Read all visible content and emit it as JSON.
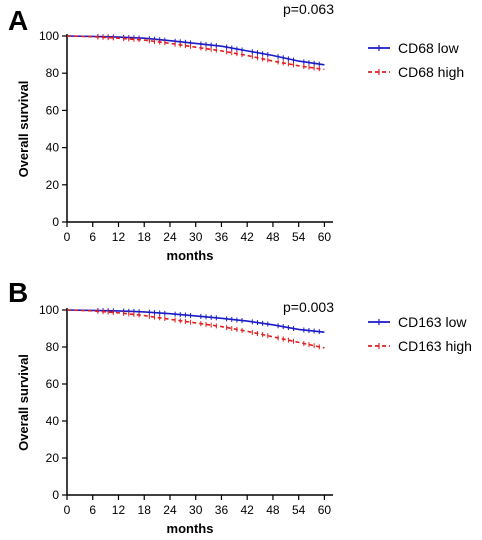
{
  "chart_data": [
    {
      "type": "line",
      "panel_label": "A",
      "xlabel": "months",
      "ylabel": "Overall survival",
      "xlim": [
        0,
        62
      ],
      "ylim": [
        0,
        100
      ],
      "xticks": [
        0,
        6,
        12,
        18,
        24,
        30,
        36,
        42,
        48,
        54,
        60
      ],
      "yticks": [
        0,
        20,
        40,
        60,
        80,
        100
      ],
      "annotation": "p=0.063",
      "legend_position": "right",
      "series": [
        {
          "name": "CD68 low",
          "color": "#1a1ac8",
          "style": "solid",
          "x": [
            0,
            6,
            12,
            18,
            24,
            30,
            36,
            42,
            48,
            54,
            60
          ],
          "y": [
            100,
            99.8,
            99.4,
            98.8,
            97.5,
            96,
            94.5,
            92,
            89.5,
            86.5,
            84.5
          ]
        },
        {
          "name": "CD68 high",
          "color": "#e02020",
          "style": "dashed",
          "x": [
            0,
            6,
            12,
            18,
            24,
            30,
            36,
            42,
            48,
            54,
            60
          ],
          "y": [
            100,
            99.6,
            98.8,
            97.8,
            96,
            94,
            92,
            89.5,
            86.5,
            84,
            82
          ]
        }
      ]
    },
    {
      "type": "line",
      "panel_label": "B",
      "xlabel": "months",
      "ylabel": "Overall survival",
      "xlim": [
        0,
        62
      ],
      "ylim": [
        0,
        100
      ],
      "xticks": [
        0,
        6,
        12,
        18,
        24,
        30,
        36,
        42,
        48,
        54,
        60
      ],
      "yticks": [
        0,
        20,
        40,
        60,
        80,
        100
      ],
      "annotation": "p=0.003",
      "legend_position": "right",
      "series": [
        {
          "name": "CD163 low",
          "color": "#1a1ac8",
          "style": "solid",
          "x": [
            0,
            6,
            12,
            18,
            24,
            30,
            36,
            42,
            48,
            54,
            60
          ],
          "y": [
            100,
            99.8,
            99.5,
            99,
            98,
            96.8,
            95.5,
            94,
            92,
            89.5,
            88
          ]
        },
        {
          "name": "CD163 high",
          "color": "#e02020",
          "style": "dashed",
          "x": [
            0,
            6,
            12,
            18,
            24,
            30,
            36,
            42,
            48,
            54,
            60
          ],
          "y": [
            100,
            99.5,
            98.5,
            97,
            95,
            93,
            91,
            88.5,
            85.5,
            82.5,
            79.5
          ]
        }
      ]
    }
  ]
}
